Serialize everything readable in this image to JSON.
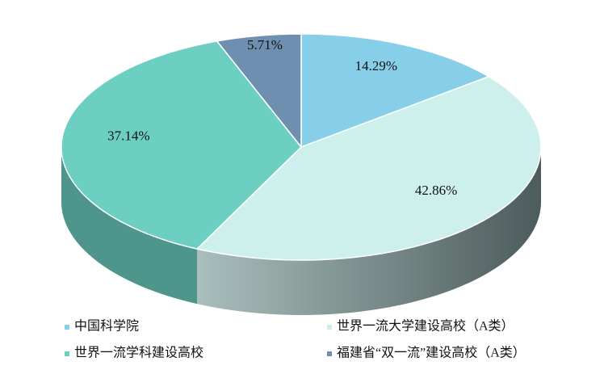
{
  "chart_data": {
    "type": "pie3d",
    "categories": [
      "中国科学院",
      "世界一流大学建设高校（A类）",
      "世界一流学科建设高校",
      "福建省“双一流”建设高校（A类）"
    ],
    "values": [
      14.29,
      42.86,
      37.14,
      5.71
    ],
    "value_labels": [
      "14.29%",
      "42.86%",
      "37.14%",
      "5.71%"
    ],
    "colors": [
      "#87cfe9",
      "#cdf0ec",
      "#6dcfc1",
      "#6f8fb1"
    ]
  }
}
